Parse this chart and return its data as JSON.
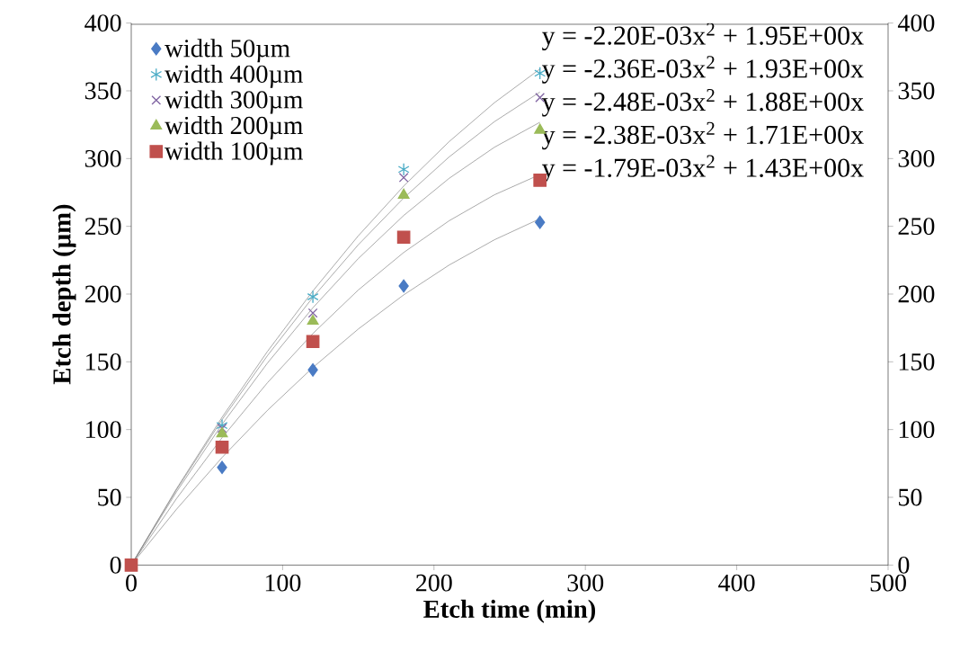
{
  "chart_data": {
    "type": "scatter",
    "xlabel": "Etch time (min)",
    "ylabel": "Etch depth (µm)",
    "xlim": [
      0,
      500
    ],
    "xticks": [
      0,
      100,
      200,
      300,
      400,
      500
    ],
    "ylim": [
      0,
      400
    ],
    "yticks": [
      0,
      50,
      100,
      150,
      200,
      250,
      300,
      350,
      400
    ],
    "y2lim": [
      0,
      400
    ],
    "y2ticks": [
      0,
      50,
      100,
      150,
      200,
      250,
      300,
      350,
      400
    ],
    "legend": "top left",
    "grid": false,
    "annotations": [
      "y = -2.20E-03x$^{2}$ + 1.95E+00x",
      "y = -2.36E-03x$^{2}$ + 1.93E+00x",
      "y = -2.48E-03x$^{2}$ + 1.88E+00x",
      "y = -2.38E-03x$^{2}$ + 1.71E+00x",
      "y = -1.79E-03x$^{2}$ + 1.43E+00x"
    ],
    "series": [
      {
        "name": "width 50µm",
        "color": "#4a7bc4",
        "marker": "diamond",
        "x": [
          60,
          120,
          180,
          270
        ],
        "values": [
          72,
          144,
          206,
          253
        ]
      },
      {
        "name": "width 400µm",
        "color": "#4bacc6",
        "marker": "cross",
        "x": [
          60,
          120,
          180,
          270
        ],
        "values": [
          103,
          198,
          292,
          363
        ]
      },
      {
        "name": "width 300µm",
        "color": "#8064a2",
        "marker": "cross",
        "x": [
          60,
          120,
          180,
          270
        ],
        "values": [
          101,
          186,
          286,
          345
        ]
      },
      {
        "name": "width 200µm",
        "color": "#9bbb59",
        "marker": "triangle",
        "x": [
          60,
          120,
          180,
          270
        ],
        "values": [
          97,
          180,
          273,
          321
        ]
      },
      {
        "name": "width 100µm",
        "color": "#c0504d",
        "marker": "square",
        "x": [
          0,
          60,
          120,
          180,
          270
        ],
        "values": [
          0,
          87,
          165,
          242,
          284
        ]
      },
      {
        "type": "line",
        "color": "#808080",
        "marker": "none",
        "line_style": "solid",
        "x": [
          0,
          30,
          60,
          90,
          120,
          150,
          180,
          210,
          240,
          270
        ],
        "values": [
          0,
          56.5,
          109.1,
          157.7,
          202.3,
          243,
          279.7,
          312.5,
          341.3,
          366.1
        ]
      },
      {
        "type": "line",
        "color": "#808080",
        "marker": "none",
        "line_style": "solid",
        "x": [
          0,
          30,
          60,
          90,
          120,
          150,
          180,
          210,
          240,
          270
        ],
        "values": [
          0,
          55.8,
          107.3,
          154.6,
          197.6,
          236.4,
          270.9,
          301.2,
          327.3,
          349.1
        ]
      },
      {
        "type": "line",
        "color": "#808080",
        "marker": "none",
        "line_style": "solid",
        "x": [
          0,
          30,
          60,
          90,
          120,
          150,
          180,
          210,
          240,
          270
        ],
        "values": [
          0,
          54.2,
          103.9,
          149.1,
          189.9,
          226.2,
          258.0,
          285.4,
          308.4,
          326.8
        ]
      },
      {
        "type": "line",
        "color": "#808080",
        "marker": "none",
        "line_style": "solid",
        "x": [
          0,
          30,
          60,
          90,
          120,
          150,
          180,
          210,
          240,
          270
        ],
        "values": [
          0,
          49.2,
          94.0,
          134.6,
          170.9,
          203.0,
          230.7,
          254.1,
          273.3,
          288.2
        ]
      },
      {
        "type": "line",
        "color": "#808080",
        "marker": "none",
        "line_style": "solid",
        "x": [
          0,
          30,
          60,
          90,
          120,
          150,
          180,
          210,
          240,
          270
        ],
        "values": [
          0,
          41.3,
          79.4,
          114.2,
          145.8,
          174.2,
          199.4,
          221.4,
          240.1,
          255.6
        ]
      }
    ]
  }
}
